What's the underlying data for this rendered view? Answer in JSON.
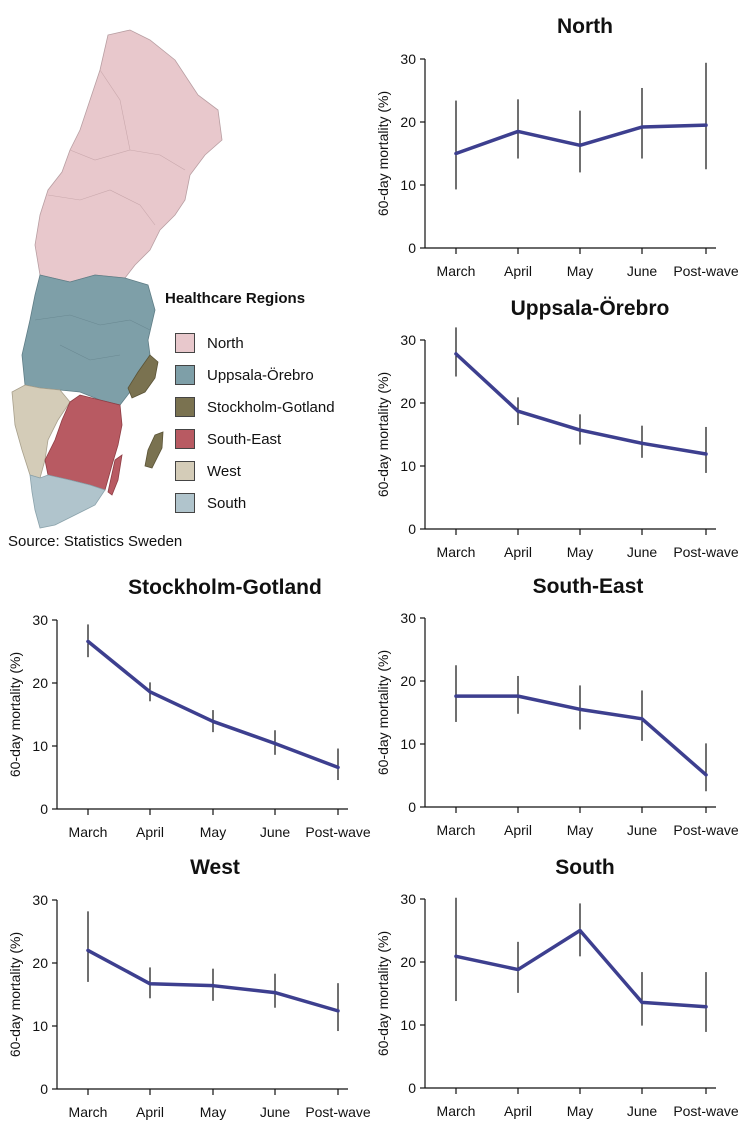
{
  "map": {
    "legend_title": "Healthcare Regions",
    "source": "Source: Statistics Sweden",
    "regions": [
      {
        "name": "North",
        "color": "#e8c8cc"
      },
      {
        "name": "Uppsala-Örebro",
        "color": "#7e9fa8"
      },
      {
        "name": "Stockholm-Gotland",
        "color": "#7a7250"
      },
      {
        "name": "South-East",
        "color": "#b85a62"
      },
      {
        "name": "West",
        "color": "#d4ccb8"
      },
      {
        "name": "South",
        "color": "#b0c4cc"
      }
    ]
  },
  "chart_data": [
    {
      "type": "line",
      "title": "North",
      "ylabel": "60-day mortality (%)",
      "categories": [
        "March",
        "April",
        "May",
        "June",
        "Post-wave"
      ],
      "values": [
        15,
        18.5,
        16.3,
        19.2,
        19.5
      ],
      "ci_low": [
        9.3,
        14.2,
        12.0,
        14.2,
        12.5
      ],
      "ci_high": [
        23.4,
        23.6,
        21.8,
        25.4,
        29.4
      ],
      "ylim": [
        0,
        30
      ],
      "yticks": [
        0,
        10,
        20,
        30
      ],
      "line_color": "#3d3f8f"
    },
    {
      "type": "line",
      "title": "Uppsala-Örebro",
      "ylabel": "60-day mortality (%)",
      "categories": [
        "March",
        "April",
        "May",
        "June",
        "Post-wave"
      ],
      "values": [
        27.8,
        18.7,
        15.7,
        13.6,
        11.9
      ],
      "ci_low": [
        24.2,
        16.5,
        13.4,
        11.3,
        8.9
      ],
      "ci_high": [
        32.0,
        20.9,
        18.2,
        16.4,
        16.2
      ],
      "ylim": [
        0,
        30
      ],
      "yticks": [
        0,
        10,
        20,
        30
      ],
      "line_color": "#3d3f8f"
    },
    {
      "type": "line",
      "title": "Stockholm-Gotland",
      "ylabel": "60-day mortality (%)",
      "categories": [
        "March",
        "April",
        "May",
        "June",
        "Post-wave"
      ],
      "values": [
        26.6,
        18.6,
        13.9,
        10.4,
        6.6
      ],
      "ci_low": [
        24.1,
        17.1,
        12.2,
        8.6,
        4.6
      ],
      "ci_high": [
        29.3,
        20.1,
        15.7,
        12.5,
        9.6
      ],
      "ylim": [
        0,
        30
      ],
      "yticks": [
        0,
        10,
        20,
        30
      ],
      "line_color": "#3d3f8f"
    },
    {
      "type": "line",
      "title": "South-East",
      "ylabel": "60-day mortality (%)",
      "categories": [
        "March",
        "April",
        "May",
        "June",
        "Post-wave"
      ],
      "values": [
        17.6,
        17.6,
        15.5,
        14.0,
        5.1
      ],
      "ci_low": [
        13.5,
        14.8,
        12.3,
        10.5,
        2.5
      ],
      "ci_high": [
        22.5,
        20.8,
        19.3,
        18.5,
        10.1
      ],
      "ylim": [
        0,
        30
      ],
      "yticks": [
        0,
        10,
        20,
        30
      ],
      "line_color": "#3d3f8f"
    },
    {
      "type": "line",
      "title": "West",
      "ylabel": "60-day mortality (%)",
      "categories": [
        "March",
        "April",
        "May",
        "June",
        "Post-wave"
      ],
      "values": [
        22.0,
        16.7,
        16.4,
        15.3,
        12.4
      ],
      "ci_low": [
        17.0,
        14.4,
        14.0,
        12.9,
        9.2
      ],
      "ci_high": [
        28.2,
        19.3,
        19.1,
        18.3,
        16.8
      ],
      "ylim": [
        0,
        30
      ],
      "yticks": [
        0,
        10,
        20,
        30
      ],
      "line_color": "#3d3f8f"
    },
    {
      "type": "line",
      "title": "South",
      "ylabel": "60-day mortality (%)",
      "categories": [
        "March",
        "April",
        "May",
        "June",
        "Post-wave"
      ],
      "values": [
        20.9,
        18.8,
        25.0,
        13.6,
        12.9
      ],
      "ci_low": [
        13.8,
        15.1,
        20.9,
        9.9,
        8.9
      ],
      "ci_high": [
        30.2,
        23.2,
        29.3,
        18.4,
        18.4
      ],
      "ylim": [
        0,
        30
      ],
      "yticks": [
        0,
        10,
        20,
        30
      ],
      "line_color": "#3d3f8f"
    }
  ]
}
